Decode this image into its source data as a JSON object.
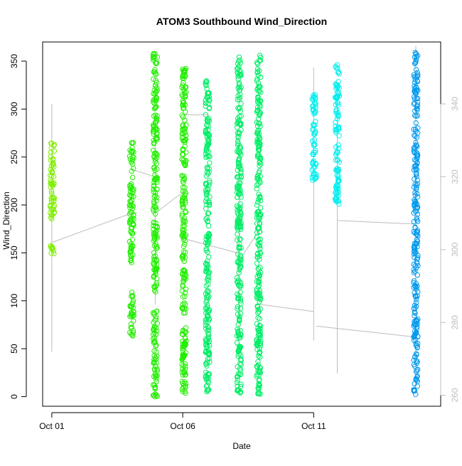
{
  "chart_data": {
    "type": "scatter",
    "title": "ATOM3 Southbound Wind_Direction",
    "xlabel": "Date",
    "ylabel": "Wind_Direction",
    "x_tick_labels": [
      "Oct 01",
      "Oct 06",
      "Oct 11"
    ],
    "x_tick_values": [
      0,
      5,
      10
    ],
    "xlim": [
      -0.35,
      14.85
    ],
    "ylim": [
      -10,
      370
    ],
    "y_ticks": [
      0,
      50,
      100,
      150,
      200,
      250,
      300,
      350
    ],
    "y2_ticks": [
      260,
      280,
      300,
      320,
      340
    ],
    "y2lim": [
      257,
      357
    ],
    "grid": false,
    "legend": "none",
    "colors": {
      "points_lime": "#80ee00",
      "points_green": "#22ee00",
      "points_springgreen": "#00ee66",
      "points_cyan": "#00eeee",
      "points_blue": "#0099ee",
      "secondary_line": "#bdbdbd",
      "axis": "#000000",
      "right_axis": "#bdbdbd"
    },
    "series": [
      {
        "color_key": "points_lime",
        "clusters": [
          {
            "x": 0.02,
            "ranges": [
              [
                148,
                162
              ],
              [
                185,
                268
              ]
            ]
          }
        ]
      },
      {
        "color_key": "points_green",
        "clusters": [
          {
            "x": 3.05,
            "ranges": [
              [
                63,
                110
              ],
              [
                140,
                270
              ]
            ]
          },
          {
            "x": 3.95,
            "ranges": [
              [
                0,
                92
              ],
              [
                108,
                360
              ]
            ]
          },
          {
            "x": 5.05,
            "ranges": [
              [
                3,
                345
              ]
            ]
          }
        ]
      },
      {
        "color_key": "points_springgreen",
        "clusters": [
          {
            "x": 5.95,
            "ranges": [
              [
                5,
                330
              ]
            ]
          },
          {
            "x": 7.15,
            "ranges": [
              [
                0,
                355
              ]
            ]
          },
          {
            "x": 7.9,
            "ranges": [
              [
                0,
                360
              ]
            ]
          }
        ]
      },
      {
        "color_key": "points_cyan",
        "clusters": [
          {
            "x": 10.02,
            "ranges": [
              [
                225,
                315
              ]
            ]
          },
          {
            "x": 10.9,
            "ranges": [
              [
                200,
                347
              ]
            ]
          }
        ]
      },
      {
        "color_key": "points_blue",
        "clusters": [
          {
            "x": 13.9,
            "ranges": [
              [
                0,
                360
              ]
            ]
          }
        ]
      }
    ],
    "secondary_series": {
      "axis": "right",
      "segments": [
        [
          [
            0.0,
            272
          ],
          [
            0.0,
            340
          ]
        ],
        [
          [
            0.02,
            302
          ],
          [
            3.05,
            310
          ]
        ],
        [
          [
            3.05,
            322
          ],
          [
            3.95,
            320
          ]
        ],
        [
          [
            3.95,
            285
          ],
          [
            3.95,
            337
          ]
        ],
        [
          [
            3.95,
            310
          ],
          [
            5.05,
            316
          ]
        ],
        [
          [
            5.05,
            303
          ],
          [
            7.15,
            299
          ]
        ],
        [
          [
            5.05,
            337
          ],
          [
            6.0,
            337
          ]
        ],
        [
          [
            7.15,
            297
          ],
          [
            7.9,
            305
          ]
        ],
        [
          [
            7.15,
            278
          ],
          [
            7.15,
            319
          ]
        ],
        [
          [
            7.9,
            285
          ],
          [
            10.0,
            283
          ]
        ],
        [
          [
            10.0,
            275
          ],
          [
            10.0,
            350
          ]
        ],
        [
          [
            10.1,
            279
          ],
          [
            13.9,
            276
          ]
        ],
        [
          [
            10.9,
            266
          ],
          [
            10.9,
            345
          ]
        ],
        [
          [
            10.9,
            308
          ],
          [
            13.9,
            307
          ]
        ],
        [
          [
            13.9,
            263
          ],
          [
            13.9,
            356
          ]
        ]
      ]
    }
  }
}
